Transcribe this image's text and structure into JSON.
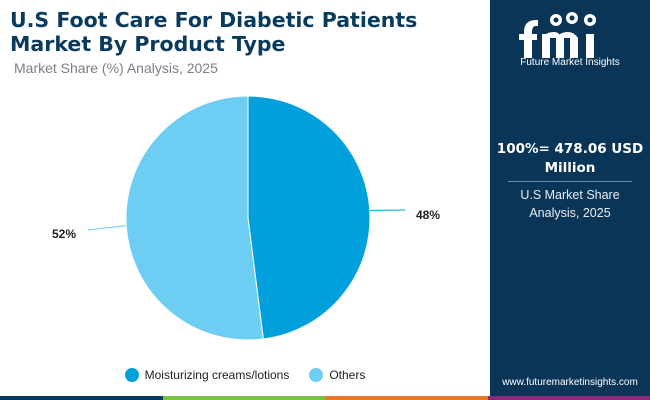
{
  "title": "U.S Foot Care For Diabetic Patients Market By Product Type",
  "subtitle": "Market Share (%) Analysis, 2025",
  "chart_data": {
    "type": "pie",
    "title": "U.S Foot Care For Diabetic Patients Market By Product Type",
    "subtitle": "Market Share (%) Analysis, 2025",
    "slices": [
      {
        "name": "Moisturizing creams/lotions",
        "value": 48,
        "label": "48%",
        "color": "#00a0dc"
      },
      {
        "name": "Others",
        "value": 52,
        "label": "52%",
        "color": "#6dcdf3"
      }
    ],
    "legend_position": "bottom"
  },
  "sidebar": {
    "logo_text": "fmi",
    "logo_caption": "Future Market Insights",
    "total_label": "100%= 478.06 USD Million",
    "analysis_label": "U.S Market Share Analysis, 2025",
    "website": "www.futuremarketinsights.com",
    "background_color": "#0b3557"
  },
  "bottom_bar_colors": [
    "#0a3a5c",
    "#7ac143",
    "#e8792a",
    "#8a2a7c"
  ]
}
